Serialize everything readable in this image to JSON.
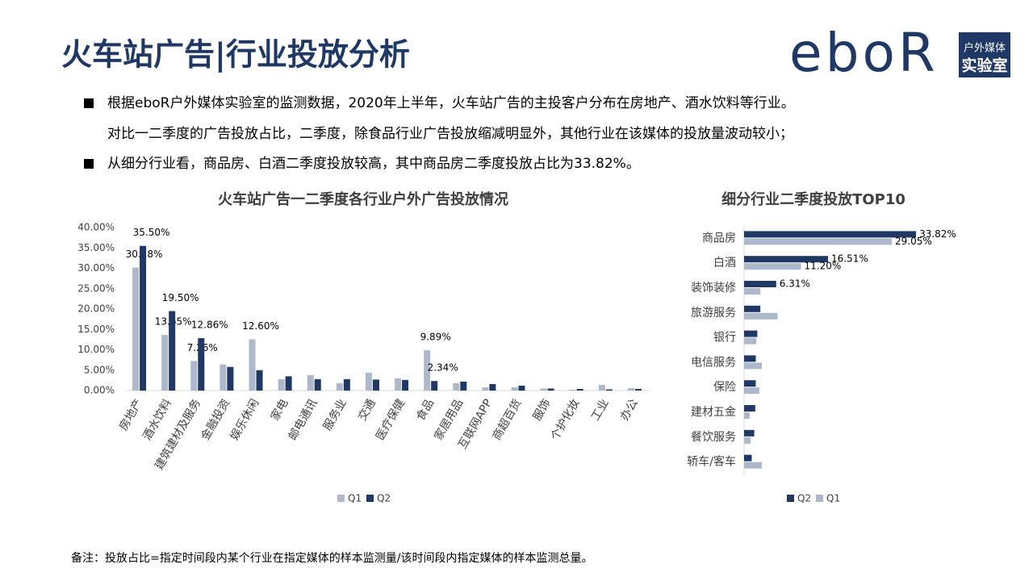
{
  "header": {
    "title": "火车站广告|行业投放分析",
    "logo": {
      "brand": "eboR",
      "line1": "户外媒体",
      "line2": "实验室"
    }
  },
  "bullets": [
    {
      "lines": [
        "根据eboR户外媒体实验室的监测数据，2020年上半年，火车站广告的主投客户分布在房地产、酒水饮料等行业。",
        "对比一二季度的广告投放占比，二季度，除食品行业广告投放缩减明显外，其他行业在该媒体的投放量波动较小；"
      ]
    },
    {
      "lines": [
        "从细分行业看，商品房、白酒二季度投放较高，其中商品房二季度投放占比为33.82%。"
      ]
    }
  ],
  "chart_data": [
    {
      "type": "bar",
      "title": "火车站广告一二季度各行业户外广告投放情况",
      "categories": [
        "房地产",
        "酒水饮料",
        "建筑建材及服务",
        "金融投资",
        "娱乐休闲",
        "家电",
        "邮电通讯",
        "服务业",
        "交通",
        "医疗保健",
        "食品",
        "家居用品",
        "互联网APP",
        "商超百货",
        "服饰",
        "个护化妆",
        "工业",
        "办公"
      ],
      "series": [
        {
          "name": "Q1",
          "color": "#adb9ca",
          "values": [
            30.18,
            13.65,
            7.26,
            6.4,
            12.6,
            2.8,
            3.8,
            1.8,
            4.4,
            3.0,
            9.89,
            1.8,
            0.8,
            0.8,
            0.5,
            0.2,
            1.4,
            0.6
          ],
          "value_labels": [
            "30.18%",
            "13.65%",
            "7.26%",
            null,
            "12.60%",
            null,
            null,
            null,
            null,
            null,
            "9.89%",
            null,
            null,
            null,
            null,
            null,
            null,
            null
          ]
        },
        {
          "name": "Q2",
          "color": "#203864",
          "values": [
            35.5,
            19.5,
            12.86,
            5.8,
            5.0,
            3.5,
            2.8,
            2.8,
            2.7,
            2.6,
            2.34,
            2.2,
            1.6,
            1.2,
            0.5,
            0.4,
            0.3,
            0.4
          ],
          "value_labels": [
            "35.50%",
            "19.50%",
            "12.86%",
            null,
            null,
            null,
            null,
            null,
            null,
            null,
            "2.34%",
            null,
            null,
            null,
            null,
            null,
            null,
            null
          ]
        }
      ],
      "ylim": [
        0,
        40
      ],
      "yticks": [
        {
          "value": 0,
          "label": "0.00%"
        },
        {
          "value": 5,
          "label": "5.00%"
        },
        {
          "value": 10,
          "label": "10.00%"
        },
        {
          "value": 15,
          "label": "15.00%"
        },
        {
          "value": 20,
          "label": "20.00%"
        },
        {
          "value": 25,
          "label": "25.00%"
        },
        {
          "value": 30,
          "label": "30.00%"
        },
        {
          "value": 35,
          "label": "35.00%"
        },
        {
          "value": 40,
          "label": "40.00%"
        }
      ],
      "legend": "bottom"
    },
    {
      "type": "hbar",
      "title": "细分行业二季度投放TOP10",
      "categories": [
        "商品房",
        "白酒",
        "装饰装修",
        "旅游服务",
        "银行",
        "电信服务",
        "保险",
        "建材五金",
        "餐饮服务",
        "轿车/客车"
      ],
      "series": [
        {
          "name": "Q2",
          "color": "#203864",
          "values": [
            33.82,
            16.51,
            6.31,
            3.2,
            2.6,
            2.3,
            2.3,
            2.2,
            2.0,
            1.5
          ],
          "value_labels": [
            "33.82%",
            "16.51%",
            "6.31%",
            null,
            null,
            null,
            null,
            null,
            null,
            null
          ]
        },
        {
          "name": "Q1",
          "color": "#adb9ca",
          "values": [
            29.05,
            11.2,
            3.2,
            6.6,
            2.4,
            3.5,
            3.0,
            1.1,
            1.3,
            3.5
          ],
          "value_labels": [
            "29.05%",
            "11.20%",
            null,
            null,
            null,
            null,
            null,
            null,
            null,
            null
          ]
        }
      ],
      "xlim": [
        0,
        40
      ],
      "legend": "bottom"
    }
  ],
  "footnote": "备注：投放占比=指定时间段内某个行业在指定媒体的样本监测量/该时间段内指定媒体的样本监测总量。"
}
